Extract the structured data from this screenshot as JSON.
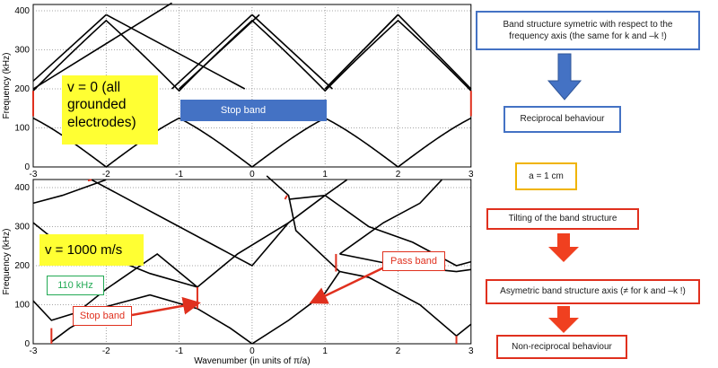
{
  "colors": {
    "blue": "#4472c4",
    "red": "#e0301e",
    "orange": "#f0b400",
    "green": "#22aa55",
    "yellow": "#ffff33"
  },
  "top_plot": {
    "ylabel": "Frequency (kHz)",
    "xticks": [
      "-3",
      "-2",
      "-1",
      "0",
      "1",
      "2",
      "3"
    ],
    "yticks": [
      "0",
      "100",
      "200",
      "300",
      "400"
    ],
    "label": "v = 0 (all grounded electrodes)",
    "stop_band_label": "Stop band"
  },
  "bottom_plot": {
    "ylabel": "Frequency (kHz)",
    "xlabel": "Wavenumber (in units of π/a)",
    "xticks": [
      "-3",
      "-2",
      "-1",
      "0",
      "1",
      "2",
      "3"
    ],
    "yticks": [
      "0",
      "100",
      "200",
      "300",
      "400"
    ],
    "label": "v = 1000 m/s",
    "gap_label": "110 kHz",
    "stop_band_label": "Stop band",
    "pass_band_label": "Pass band"
  },
  "annotations": {
    "band_symmetric": "Band structure symetric with respect to the frequency axis (the same for k and –k !)",
    "reciprocal": "Reciprocal behaviour",
    "lattice": "a = 1 cm",
    "tilting": "Tilting of the band structure",
    "asymmetric": "Asymetric band structure axis (≠ for k and –k !)",
    "non_reciprocal": "Non-reciprocal behaviour"
  }
}
